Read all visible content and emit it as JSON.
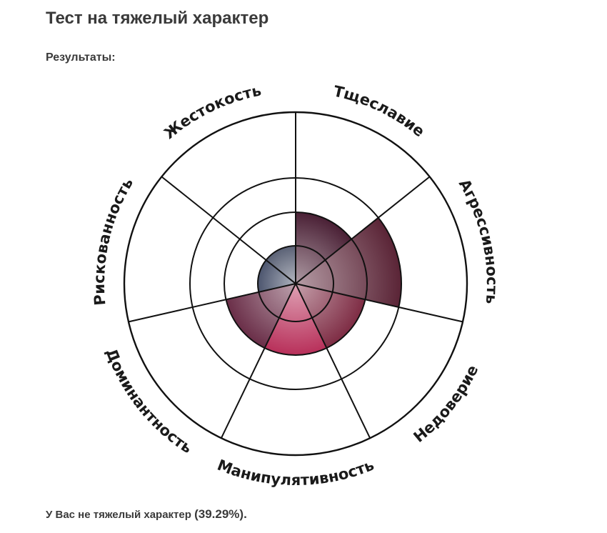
{
  "page": {
    "title": "Тест на тяжелый характер",
    "results_label": "Результаты:",
    "result_text": "У Вас не тяжелый характер",
    "result_percent_open": "(",
    "result_percent": "39.29%",
    "result_percent_close": ").",
    "result_percent_value": 39.29
  },
  "chart_data": {
    "type": "polar-area",
    "categories": [
      "Тщеславие",
      "Агрессивность",
      "Недоверие",
      "Манипулятивность",
      "Доминантность",
      "Рискованность",
      "Жестокость"
    ],
    "values": [
      2,
      3,
      2,
      2,
      2,
      1,
      1
    ],
    "rings": 4,
    "range": [
      0,
      4
    ],
    "grid": true,
    "colors": [
      "#4a2035",
      "#5a2436",
      "#7e2c44",
      "#b8305a",
      "#6a2e48",
      "#4c556e",
      "#5a6175"
    ]
  }
}
